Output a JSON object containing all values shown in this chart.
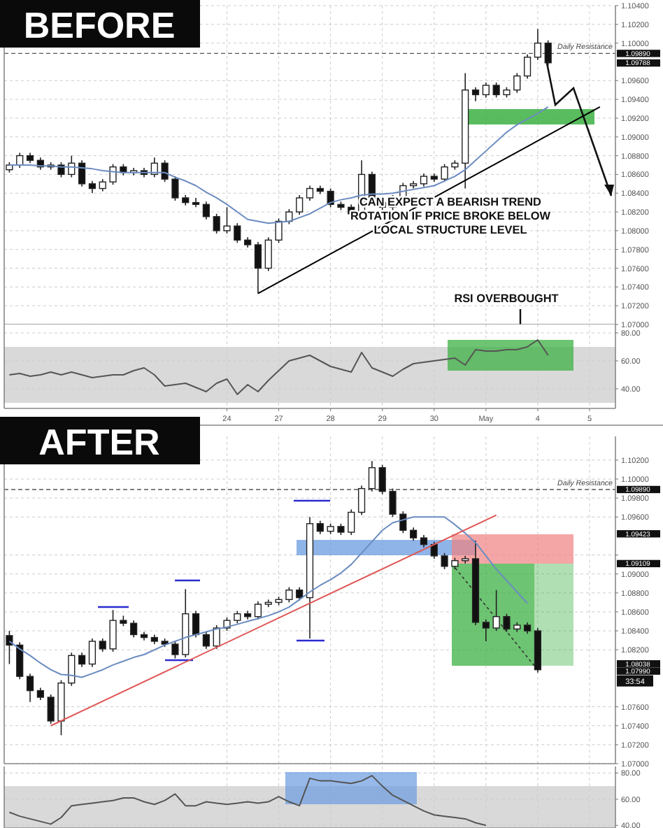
{
  "chart_data": [
    {
      "type": "candlestick",
      "title": "BEFORE",
      "categories": [
        null,
        null,
        null,
        null,
        null,
        null,
        null,
        null,
        null,
        null,
        null,
        null,
        null,
        null,
        null,
        null,
        null,
        null,
        null,
        null,
        null,
        null,
        null,
        null,
        null,
        null,
        null,
        null,
        null,
        null,
        null,
        null,
        null,
        null,
        null,
        null,
        null,
        null,
        null,
        null,
        null,
        null,
        null,
        null,
        null,
        null,
        null,
        null,
        null,
        null,
        null,
        null,
        null,
        null,
        null,
        null,
        null,
        null,
        null
      ],
      "ylim": [
        1.07,
        1.104
      ],
      "yticks": [
        {
          "value": 1.07,
          "label": "1.07000"
        },
        {
          "value": 1.072,
          "label": "1.07200"
        },
        {
          "value": 1.074,
          "label": "1.07400"
        },
        {
          "value": 1.076,
          "label": "1.07600"
        },
        {
          "value": 1.078,
          "label": "1.07800"
        },
        {
          "value": 1.08,
          "label": "1.08000"
        },
        {
          "value": 1.082,
          "label": "1.08200"
        },
        {
          "value": 1.084,
          "label": "1.08400"
        },
        {
          "value": 1.086,
          "label": "1.08600"
        },
        {
          "value": 1.088,
          "label": "1.08800"
        },
        {
          "value": 1.09,
          "label": "1.09000"
        },
        {
          "value": 1.092,
          "label": "1.09200"
        },
        {
          "value": 1.094,
          "label": "1.09400"
        },
        {
          "value": 1.096,
          "label": "1.09600"
        },
        {
          "value": 1.1,
          "label": "1.10000"
        },
        {
          "value": 1.102,
          "label": "1.10200"
        },
        {
          "value": 1.104,
          "label": "1.10400"
        }
      ],
      "y2lim": [
        1.07,
        1.104
      ],
      "y2ticks": [
        {
          "value": 1.0989,
          "label": "1.09890"
        },
        {
          "value": 1.09788,
          "label": "1.09788"
        }
      ],
      "tick_labels": "y",
      "grid": true,
      "ohlc": [
        [
          1.0865,
          1.0873,
          1.0862,
          1.087
        ],
        [
          1.087,
          1.0883,
          1.0867,
          1.088
        ],
        [
          1.088,
          1.0883,
          1.0872,
          1.0875
        ],
        [
          1.0875,
          1.0878,
          1.0865,
          1.0868
        ],
        [
          1.0868,
          1.0873,
          1.0865,
          1.087
        ],
        [
          1.087,
          1.0873,
          1.0857,
          1.086
        ],
        [
          1.086,
          1.088,
          1.0857,
          1.0872
        ],
        [
          1.0872,
          1.0875,
          1.0847,
          1.085
        ],
        [
          1.085,
          1.0853,
          1.084,
          1.0845
        ],
        [
          1.0845,
          1.0855,
          1.0842,
          1.0852
        ],
        [
          1.0852,
          1.0871,
          1.0849,
          1.0868
        ],
        [
          1.0868,
          1.0871,
          1.0859,
          1.0862
        ],
        [
          1.0862,
          1.0867,
          1.0859,
          1.0864
        ],
        [
          1.0864,
          1.0867,
          1.0857,
          1.086
        ],
        [
          1.086,
          1.0878,
          1.0857,
          1.0872
        ],
        [
          1.0872,
          1.0875,
          1.0852,
          1.0855
        ],
        [
          1.0855,
          1.0858,
          1.0832,
          1.0835
        ],
        [
          1.0835,
          1.0838,
          1.0827,
          1.083
        ],
        [
          1.083,
          1.0835,
          1.0825,
          1.0828
        ],
        [
          1.0828,
          1.0831,
          1.0812,
          1.0815
        ],
        [
          1.0815,
          1.0818,
          1.0797,
          1.08
        ],
        [
          1.08,
          1.0825,
          1.0797,
          1.0805
        ],
        [
          1.0805,
          1.0808,
          1.0787,
          1.079
        ],
        [
          1.079,
          1.0793,
          1.0782,
          1.0785
        ],
        [
          1.0785,
          1.0788,
          1.0733,
          1.076
        ],
        [
          1.076,
          1.0793,
          1.0757,
          1.079
        ],
        [
          1.079,
          1.0813,
          1.0787,
          1.081
        ],
        [
          1.081,
          1.0823,
          1.0807,
          1.082
        ],
        [
          1.082,
          1.0838,
          1.0817,
          1.0835
        ],
        [
          1.0835,
          1.0848,
          1.0832,
          1.0845
        ],
        [
          1.0845,
          1.0848,
          1.0839,
          1.0842
        ],
        [
          1.0842,
          1.0845,
          1.0825,
          1.0828
        ],
        [
          1.0828,
          1.0831,
          1.0822,
          1.0825
        ],
        [
          1.0825,
          1.0828,
          1.0815,
          1.0818
        ],
        [
          1.0818,
          1.0875,
          1.0815,
          1.086
        ],
        [
          1.086,
          1.0863,
          1.0827,
          1.083
        ],
        [
          1.083,
          1.0833,
          1.0822,
          1.0825
        ],
        [
          1.0825,
          1.0838,
          1.0822,
          1.0835
        ],
        [
          1.0835,
          1.0851,
          1.0832,
          1.0848
        ],
        [
          1.0848,
          1.0853,
          1.0845,
          1.085
        ],
        [
          1.085,
          1.0861,
          1.0847,
          1.0858
        ],
        [
          1.0858,
          1.0861,
          1.0852,
          1.0855
        ],
        [
          1.0855,
          1.0871,
          1.0852,
          1.0868
        ],
        [
          1.0868,
          1.0875,
          1.0865,
          1.0872
        ],
        [
          1.0872,
          1.0968,
          1.0845,
          1.095
        ],
        [
          1.095,
          1.0953,
          1.0938,
          1.0945
        ],
        [
          1.0945,
          1.0958,
          1.0942,
          1.0955
        ],
        [
          1.0955,
          1.0958,
          1.0942,
          1.0945
        ],
        [
          1.0945,
          1.0953,
          1.0942,
          1.095
        ],
        [
          1.095,
          1.0968,
          1.0947,
          1.0965
        ],
        [
          1.0965,
          1.0988,
          1.0962,
          1.0985
        ],
        [
          1.0985,
          1.1015,
          1.0982,
          1.1
        ],
        [
          1.1,
          1.1003,
          1.0976,
          1.0979
        ],
        null,
        null,
        null,
        null,
        null,
        null
      ],
      "series": [
        {
          "type": "line",
          "color": "#6b8cc0",
          "values": [
            1.087,
            1.087,
            1.087,
            1.0869,
            1.0869,
            1.0868,
            1.0868,
            1.0867,
            1.0866,
            1.0864,
            1.0863,
            1.0862,
            1.0862,
            1.0862,
            1.0862,
            1.0862,
            1.0857,
            1.0853,
            1.0848,
            1.0841,
            1.0835,
            1.0828,
            1.082,
            1.0812,
            1.081,
            1.0808,
            1.0809,
            1.081,
            1.0814,
            1.0818,
            1.0824,
            1.083,
            1.0833,
            1.0835,
            1.0838,
            1.0839,
            1.0839,
            1.084,
            1.0842,
            1.0844,
            1.0846,
            1.0848,
            1.0853,
            1.0858,
            1.0865,
            1.0875,
            1.0885,
            1.0895,
            1.0905,
            1.0913,
            1.0919,
            1.0925,
            1.0932,
            null,
            null,
            null,
            null,
            null,
            null
          ]
        },
        {
          "type": "line",
          "color": "#000000",
          "values": [
            null,
            null,
            null,
            null,
            null,
            null,
            null,
            null,
            null,
            null,
            null,
            null,
            null,
            null,
            null,
            null,
            null,
            null,
            null,
            null,
            null,
            null,
            null,
            null,
            1.0733,
            null,
            null,
            null,
            null,
            null,
            null,
            null,
            null,
            null,
            null,
            null,
            null,
            null,
            null,
            null,
            null,
            null,
            null,
            null,
            null,
            null,
            null,
            null,
            null,
            null,
            null,
            null,
            null,
            null,
            null,
            null,
            null,
            1.0932,
            null
          ]
        }
      ],
      "ref_lines": [
        {
          "axis": "y",
          "value": 1.0989,
          "label": "Daily Resistance",
          "line_style": "dashed",
          "color": "#555555"
        }
      ],
      "annotations": [
        "CAN EXPECT A BEARISH TREND ROTATION IF PRICE BROKE BELOW LOCAL STRUCTURE LEVEL",
        "RSI OVERBOUGHT"
      ]
    },
    {
      "type": "line",
      "categories": [
        null,
        null,
        null,
        null,
        null,
        null,
        null,
        null,
        null,
        null,
        null,
        null,
        null,
        null,
        null,
        null,
        null,
        null,
        null,
        null,
        null,
        "24",
        null,
        null,
        null,
        null,
        "27",
        null,
        null,
        null,
        null,
        "28",
        null,
        null,
        null,
        null,
        "29",
        null,
        null,
        null,
        null,
        "30",
        null,
        null,
        null,
        null,
        "May",
        null,
        null,
        null,
        null,
        "4",
        null,
        null,
        null,
        null,
        "5",
        null,
        null
      ],
      "ylim": [
        26,
        86
      ],
      "yticks": [
        {
          "value": 40,
          "label": "40.00"
        },
        {
          "value": 60,
          "label": "60.00"
        },
        {
          "value": 80,
          "label": "80.00"
        }
      ],
      "grid": true,
      "series": [
        {
          "color": "#555555",
          "values": [
            50,
            51,
            49,
            50,
            52,
            50,
            52,
            50,
            48,
            49,
            50,
            50,
            53,
            55,
            50,
            42,
            43,
            44,
            41,
            38,
            44,
            47,
            36,
            43,
            38,
            46,
            53,
            60,
            62,
            64,
            60,
            56,
            54,
            52,
            66,
            55,
            52,
            49,
            54,
            58,
            59,
            60,
            61,
            62,
            57,
            68,
            67,
            67,
            68,
            68,
            70,
            75,
            64,
            null,
            null,
            null,
            null,
            null,
            null
          ]
        }
      ],
      "bands": [
        {
          "axis": "y",
          "from": 30,
          "to": 70,
          "color": "#d9d9d9"
        }
      ]
    },
    {
      "type": "candlestick",
      "title": "AFTER",
      "categories": [
        null,
        null,
        null,
        null,
        null,
        null,
        null,
        null,
        null,
        null,
        null,
        null,
        null,
        null,
        null,
        null,
        null,
        null,
        null,
        null,
        null,
        null,
        null,
        null,
        null,
        null,
        null,
        null,
        null,
        null,
        null,
        null,
        null,
        null,
        null,
        null,
        null,
        null,
        null,
        null,
        null,
        null,
        null,
        null,
        null,
        null,
        null,
        null,
        null,
        null,
        null,
        null,
        null,
        null,
        null,
        null,
        null,
        null,
        null
      ],
      "ylim": [
        1.07,
        1.1045
      ],
      "yticks": [
        {
          "value": 1.07,
          "label": "1.07000"
        },
        {
          "value": 1.072,
          "label": "1.07200"
        },
        {
          "value": 1.074,
          "label": "1.07400"
        },
        {
          "value": 1.076,
          "label": "1.07600"
        },
        {
          "value": 1.082,
          "label": "1.08200"
        },
        {
          "value": 1.084,
          "label": "1.08400"
        },
        {
          "value": 1.086,
          "label": "1.08600"
        },
        {
          "value": 1.088,
          "label": "1.08800"
        },
        {
          "value": 1.09,
          "label": "1.09000"
        },
        {
          "value": 1.092,
          "label": null
        },
        {
          "value": 1.096,
          "label": "1.09600"
        },
        {
          "value": 1.098,
          "label": "1.09800"
        },
        {
          "value": 1.1,
          "label": "1.10000"
        },
        {
          "value": 1.102,
          "label": "1.10200"
        }
      ],
      "y2lim": [
        1.07,
        1.1045
      ],
      "y2ticks": [
        {
          "value": 1.0989,
          "label": "1.09890"
        },
        {
          "value": 1.09423,
          "label": "1.09423"
        },
        {
          "value": 1.09109,
          "label": "1.09109"
        },
        {
          "value": 1.08038,
          "label": "1.08038"
        },
        {
          "value": 1.0799,
          "label": "1.07990"
        }
      ],
      "tick_labels": "y",
      "grid": true,
      "ohlc": [
        [
          1.0835,
          1.084,
          1.0805,
          1.0825
        ],
        [
          1.0825,
          1.0828,
          1.0789,
          1.0792
        ],
        [
          1.0792,
          1.0795,
          1.0765,
          1.0777
        ],
        [
          1.0777,
          1.078,
          1.0767,
          1.077
        ],
        [
          1.077,
          1.0773,
          1.0742,
          1.0745
        ],
        [
          1.0745,
          1.0788,
          1.073,
          1.0785
        ],
        [
          1.0785,
          1.0817,
          1.0782,
          1.0814
        ],
        [
          1.0814,
          1.0817,
          1.0802,
          1.0805
        ],
        [
          1.0805,
          1.0832,
          1.0802,
          1.0829
        ],
        [
          1.0829,
          1.0832,
          1.0818,
          1.0821
        ],
        [
          1.0821,
          1.0862,
          1.0818,
          1.0851
        ],
        [
          1.0851,
          1.0856,
          1.0845,
          1.0848
        ],
        [
          1.0848,
          1.0851,
          1.0833,
          1.0836
        ],
        [
          1.0836,
          1.0839,
          1.083,
          1.0833
        ],
        [
          1.0833,
          1.0836,
          1.0826,
          1.0829
        ],
        [
          1.0829,
          1.0832,
          1.0823,
          1.0826
        ],
        [
          1.0826,
          1.0829,
          1.0811,
          1.0815
        ],
        [
          1.0815,
          1.0884,
          1.0812,
          1.0858
        ],
        [
          1.0858,
          1.0861,
          1.0833,
          1.0836
        ],
        [
          1.0836,
          1.0839,
          1.0821,
          1.0824
        ],
        [
          1.0824,
          1.0846,
          1.0821,
          1.0843
        ],
        [
          1.0843,
          1.0854,
          1.084,
          1.0851
        ],
        [
          1.0851,
          1.0861,
          1.0848,
          1.0858
        ],
        [
          1.0858,
          1.0861,
          1.0852,
          1.0855
        ],
        [
          1.0855,
          1.0871,
          1.0852,
          1.0868
        ],
        [
          1.0868,
          1.0873,
          1.0865,
          1.087
        ],
        [
          1.087,
          1.0876,
          1.0867,
          1.0873
        ],
        [
          1.0873,
          1.0886,
          1.087,
          1.0883
        ],
        [
          1.0883,
          1.0886,
          1.0872,
          1.0875
        ],
        [
          1.0875,
          1.096,
          1.0832,
          1.0953
        ],
        [
          1.0953,
          1.0956,
          1.0942,
          1.0945
        ],
        [
          1.0945,
          1.0953,
          1.0942,
          1.095
        ],
        [
          1.095,
          1.0953,
          1.0941,
          1.0944
        ],
        [
          1.0944,
          1.0968,
          1.0941,
          1.0965
        ],
        [
          1.0965,
          1.0993,
          1.0962,
          1.099
        ],
        [
          1.099,
          1.1019,
          1.0987,
          1.1012
        ],
        [
          1.1012,
          1.1015,
          1.0984,
          1.0987
        ],
        [
          1.0987,
          1.099,
          1.096,
          1.0963
        ],
        [
          1.0963,
          1.0966,
          1.0943,
          1.0946
        ],
        [
          1.0946,
          1.0949,
          1.0935,
          1.0938
        ],
        [
          1.0938,
          1.0941,
          1.0928,
          1.0931
        ],
        [
          1.0931,
          1.0934,
          1.0916,
          1.0919
        ],
        [
          1.0919,
          1.0922,
          1.0905,
          1.0908
        ],
        [
          1.0908,
          1.0917,
          1.0905,
          1.0914
        ],
        [
          1.0914,
          1.0919,
          1.0911,
          1.0916
        ],
        [
          1.0916,
          1.0935,
          1.0846,
          1.0849
        ],
        [
          1.0849,
          1.0852,
          1.0829,
          1.0843
        ],
        [
          1.0843,
          1.0883,
          1.084,
          1.0855
        ],
        [
          1.0855,
          1.0858,
          1.0839,
          1.0842
        ],
        [
          1.0842,
          1.0849,
          1.0839,
          1.0846
        ],
        [
          1.0846,
          1.0849,
          1.0837,
          1.084
        ],
        [
          1.084,
          1.0843,
          1.0796,
          1.0799
        ],
        null,
        null,
        null,
        null,
        null,
        null,
        null
      ],
      "series": [
        {
          "type": "line",
          "color": "#6b8cc0",
          "values": [
            1.0829,
            1.0821,
            1.0814,
            1.0806,
            1.0799,
            1.0794,
            1.0793,
            1.0791,
            1.0795,
            1.0799,
            1.0804,
            1.0808,
            1.0812,
            1.0815,
            1.082,
            1.0825,
            1.0829,
            1.0833,
            1.0836,
            1.0839,
            1.0842,
            1.0844,
            1.0847,
            1.085,
            1.0853,
            1.0856,
            1.086,
            1.0865,
            1.0873,
            1.0881,
            1.0888,
            1.0894,
            1.0901,
            1.091,
            1.0922,
            1.0934,
            1.0946,
            1.0954,
            1.0957,
            1.096,
            1.096,
            1.096,
            1.096,
            1.0952,
            1.0943,
            1.0933,
            1.0919,
            1.0905,
            1.0893,
            1.0881,
            1.0869,
            null,
            null,
            null,
            null,
            null,
            null,
            null,
            null
          ]
        },
        {
          "type": "line",
          "color": "#e05555",
          "values": [
            null,
            null,
            null,
            null,
            1.074,
            null,
            null,
            null,
            null,
            null,
            null,
            null,
            null,
            null,
            null,
            null,
            null,
            null,
            null,
            null,
            null,
            null,
            null,
            null,
            null,
            null,
            null,
            null,
            null,
            null,
            null,
            null,
            null,
            null,
            null,
            null,
            null,
            null,
            null,
            null,
            null,
            null,
            null,
            null,
            null,
            null,
            null,
            1.0962,
            null,
            null,
            null,
            null,
            null,
            null,
            null,
            null,
            null,
            null,
            null
          ]
        }
      ],
      "ref_lines": [
        {
          "axis": "y",
          "value": 1.0989,
          "label": "Daily Resistance",
          "line_style": "dashed",
          "color": "#555555"
        }
      ],
      "annotations": [
        "33:54"
      ]
    },
    {
      "type": "line",
      "categories": [
        null,
        null,
        null,
        null,
        null,
        null,
        null,
        null,
        null,
        null,
        null,
        null,
        null,
        null,
        null,
        null,
        null,
        null,
        null,
        null,
        null,
        null,
        null,
        null,
        null,
        null,
        null,
        null,
        null,
        null,
        null,
        null,
        null,
        null,
        null,
        null,
        null,
        null,
        null,
        null,
        null,
        null,
        null,
        null,
        null,
        null,
        null,
        null,
        null,
        null,
        null,
        null,
        null,
        null,
        null,
        null,
        null,
        null,
        null
      ],
      "ylim": [
        38,
        85
      ],
      "yticks": [
        {
          "value": 40,
          "label": "40.00"
        },
        {
          "value": 60,
          "label": "60.00"
        },
        {
          "value": 80,
          "label": "80.00"
        }
      ],
      "tick_labels": "y",
      "grid": true,
      "series": [
        {
          "color": "#555555",
          "values": [
            50,
            47,
            45,
            43,
            41,
            46,
            55,
            56,
            57,
            58,
            59,
            61,
            61,
            58,
            56,
            59,
            64,
            55,
            55,
            58,
            57,
            56,
            57,
            58,
            57,
            58,
            62,
            58,
            55,
            76,
            74,
            74,
            73,
            72,
            74,
            78,
            70,
            63,
            59,
            55,
            51,
            48,
            47,
            46,
            45,
            42,
            40,
            null,
            null,
            null,
            null,
            null,
            null,
            null,
            null,
            null,
            null,
            null,
            null
          ]
        }
      ],
      "bands": [
        {
          "axis": "y",
          "from": 30,
          "to": 70,
          "color": "#d9d9d9"
        }
      ]
    }
  ]
}
